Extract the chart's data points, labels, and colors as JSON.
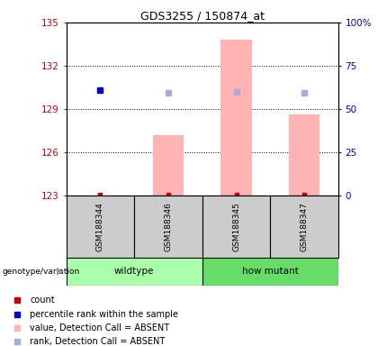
{
  "title": "GDS3255 / 150874_at",
  "samples": [
    "GSM188344",
    "GSM188346",
    "GSM188345",
    "GSM188347"
  ],
  "ylim_left": [
    123,
    135
  ],
  "ylim_right": [
    0,
    100
  ],
  "yticks_left": [
    123,
    126,
    129,
    132,
    135
  ],
  "yticks_right": [
    0,
    25,
    50,
    75,
    100
  ],
  "left_axis_color": "#cc0000",
  "right_axis_color": "#0000cc",
  "bar_color": "#ffb3b3",
  "bar_values": [
    123.0,
    127.2,
    133.8,
    128.6
  ],
  "bar_bottom": 123,
  "blue_square_value": 130.3,
  "light_blue_values": [
    130.1,
    130.2,
    130.1
  ],
  "light_blue_idxs": [
    1,
    2,
    3
  ],
  "count_value": 123.05,
  "sample_bg_color": "#cccccc",
  "group1_color": "#aaffaa",
  "group2_color": "#66dd66",
  "legend_items": [
    {
      "color": "#cc0000",
      "label": "count"
    },
    {
      "color": "#0000cc",
      "label": "percentile rank within the sample"
    },
    {
      "color": "#ffb3b3",
      "label": "value, Detection Call = ABSENT"
    },
    {
      "color": "#aaaadd",
      "label": "rank, Detection Call = ABSENT"
    }
  ],
  "genotype_label": "genotype/variation",
  "group_labels": [
    "wildtype",
    "how mutant"
  ]
}
